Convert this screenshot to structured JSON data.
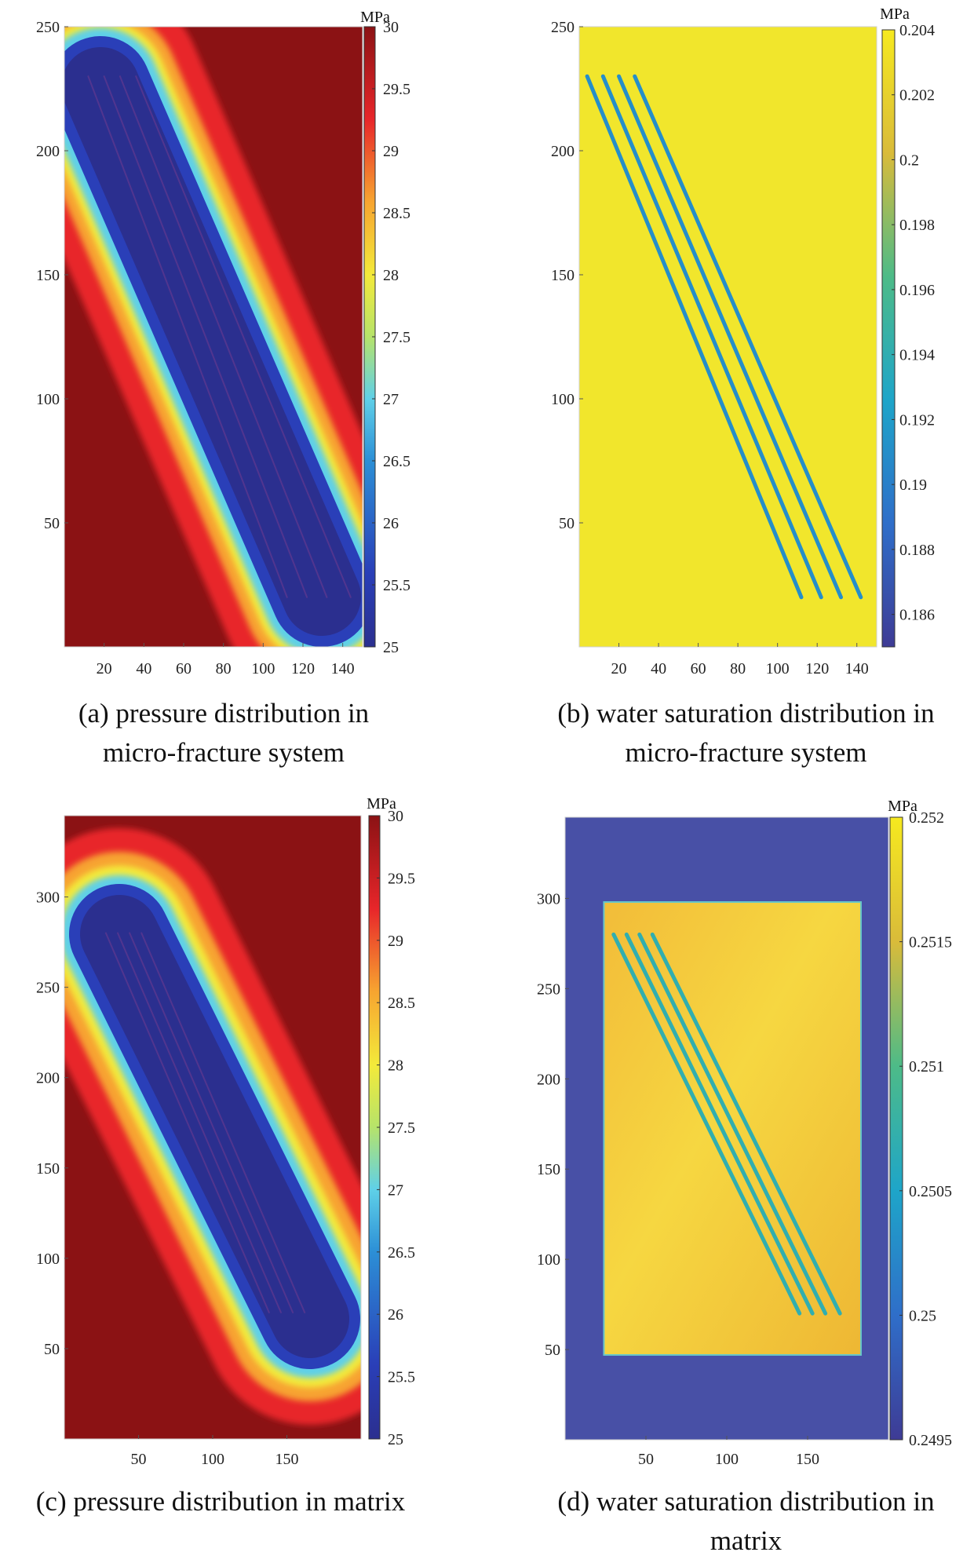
{
  "chart_data": [
    {
      "type": "heatmap",
      "colormap": "jet",
      "colorbar": {
        "unit": "MPa",
        "range": [
          25,
          30
        ],
        "ticks": [
          "30",
          "29.5",
          "29",
          "28.5",
          "28",
          "27.5",
          "27",
          "26.5",
          "26",
          "25.5",
          "25"
        ]
      },
      "x": {
        "range": [
          0,
          150
        ],
        "ticks": [
          "20",
          "40",
          "60",
          "80",
          "100",
          "120",
          "140"
        ]
      },
      "y": {
        "range": [
          0,
          250
        ],
        "ticks": [
          "250",
          "200",
          "150",
          "100",
          "50"
        ]
      },
      "fractures": {
        "count": 4,
        "from": [
          [
            12,
            230
          ],
          [
            20,
            230
          ],
          [
            28,
            230
          ],
          [
            36,
            230
          ]
        ],
        "to": [
          [
            112,
            20
          ],
          [
            122,
            20
          ],
          [
            132,
            20
          ],
          [
            144,
            20
          ]
        ]
      },
      "description": "Low pressure (~25 MPa) inside the stimulated fracture band, rising to ~30 MPa away from it",
      "caption": [
        "(a) pressure distribution in",
        "micro-fracture system"
      ]
    },
    {
      "type": "heatmap",
      "colormap": "parula",
      "colorbar": {
        "unit": "MPa",
        "range": [
          0.185,
          0.204
        ],
        "ticks": [
          "0.204",
          "0.202",
          "0.2",
          "0.198",
          "0.196",
          "0.194",
          "0.192",
          "0.19",
          "0.188",
          "0.186"
        ]
      },
      "x": {
        "range": [
          0,
          150
        ],
        "ticks": [
          "20",
          "40",
          "60",
          "80",
          "100",
          "120",
          "140"
        ]
      },
      "y": {
        "range": [
          0,
          250
        ],
        "ticks": [
          "250",
          "200",
          "150",
          "100",
          "50"
        ]
      },
      "background_value": 0.203,
      "fracture_value": 0.191,
      "fractures": {
        "count": 4,
        "from": [
          [
            4,
            230
          ],
          [
            12,
            230
          ],
          [
            20,
            230
          ],
          [
            28,
            230
          ]
        ],
        "to": [
          [
            112,
            20
          ],
          [
            122,
            20
          ],
          [
            132,
            20
          ],
          [
            142,
            20
          ]
        ]
      },
      "caption": [
        "(b) water saturation distribution in",
        "micro-fracture system"
      ]
    },
    {
      "type": "heatmap",
      "colormap": "jet",
      "colorbar": {
        "unit": "MPa",
        "range": [
          25,
          30
        ],
        "ticks": [
          "30",
          "29.5",
          "29",
          "28.5",
          "28",
          "27.5",
          "27",
          "26.5",
          "26",
          "25.5",
          "25"
        ]
      },
      "x": {
        "range": [
          0,
          200
        ],
        "ticks": [
          "50",
          "100",
          "150"
        ]
      },
      "y": {
        "range": [
          0,
          345
        ],
        "ticks": [
          "300",
          "250",
          "200",
          "150",
          "100",
          "50"
        ]
      },
      "fractures": {
        "count": 4,
        "from": [
          [
            28,
            280
          ],
          [
            36,
            280
          ],
          [
            44,
            280
          ],
          [
            52,
            280
          ]
        ],
        "to": [
          [
            138,
            70
          ],
          [
            146,
            70
          ],
          [
            154,
            70
          ],
          [
            162,
            70
          ]
        ]
      },
      "description": "Low pressure (~25 MPa) inside the stimulated fracture band, rising to ~30 MPa away from it",
      "caption": [
        "(c) pressure distribution in matrix"
      ]
    },
    {
      "type": "heatmap",
      "colormap": "parula",
      "colorbar": {
        "unit": "MPa",
        "range": [
          0.2495,
          0.252
        ],
        "ticks": [
          "0.252",
          "0.2515",
          "0.251",
          "0.2505",
          "0.25",
          "0.2495"
        ]
      },
      "x": {
        "range": [
          0,
          200
        ],
        "ticks": [
          "50",
          "100",
          "150"
        ]
      },
      "y": {
        "range": [
          0,
          345
        ],
        "ticks": [
          "300",
          "250",
          "200",
          "150",
          "100",
          "50"
        ]
      },
      "background_value": 0.2499,
      "region_value": 0.2517,
      "region": {
        "x": [
          24,
          183
        ],
        "y": [
          47,
          298
        ]
      },
      "fracture_value": 0.2507,
      "fractures": {
        "count": 4,
        "from": [
          [
            30,
            280
          ],
          [
            38,
            280
          ],
          [
            46,
            280
          ],
          [
            54,
            280
          ]
        ],
        "to": [
          [
            145,
            70
          ],
          [
            153,
            70
          ],
          [
            161,
            70
          ],
          [
            170,
            70
          ]
        ]
      },
      "caption": [
        "(d) water saturation distribution in",
        "matrix"
      ]
    }
  ]
}
